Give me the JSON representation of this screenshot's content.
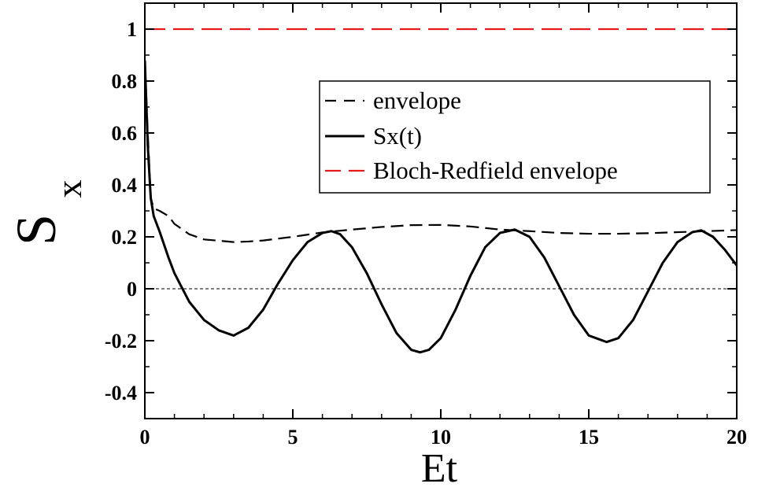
{
  "chart_data": {
    "type": "line",
    "xlabel": "Et",
    "ylabel": "S",
    "ylabel_subscript": "x",
    "xlim": [
      0,
      20
    ],
    "ylim": [
      -0.5,
      1.1
    ],
    "xticks": [
      0,
      5,
      10,
      15,
      20
    ],
    "xtick_labels": [
      "0",
      "5",
      "10",
      "15",
      "20"
    ],
    "yticks": [
      -0.4,
      -0.2,
      0,
      0.2,
      0.4,
      0.6,
      0.8,
      1
    ],
    "ytick_labels": [
      "-0.4",
      "-0.2",
      "0",
      "0.2",
      "0.4",
      "0.6",
      "0.8",
      "1"
    ],
    "grid": false,
    "legend_position": "upper-right",
    "zero_line": {
      "y": 0,
      "color": "#000000",
      "style": "dashed-thin"
    },
    "series": [
      {
        "name": "envelope",
        "color": "#000000",
        "style": "dashed",
        "x": [
          0,
          0.1,
          0.2,
          0.3,
          0.5,
          0.8,
          1.0,
          1.5,
          2.0,
          2.5,
          3.0,
          3.5,
          4.0,
          5.0,
          6.0,
          7.0,
          8.0,
          9.0,
          10.0,
          11.0,
          12.0,
          13.0,
          14.0,
          15.0,
          16.0,
          17.0,
          18.0,
          19.0,
          20.0
        ],
        "y": [
          0.88,
          0.6,
          0.35,
          0.31,
          0.3,
          0.28,
          0.25,
          0.21,
          0.19,
          0.185,
          0.18,
          0.182,
          0.186,
          0.2,
          0.217,
          0.228,
          0.238,
          0.245,
          0.246,
          0.24,
          0.228,
          0.222,
          0.215,
          0.212,
          0.212,
          0.214,
          0.218,
          0.222,
          0.226
        ]
      },
      {
        "name": "Sx(t)",
        "color": "#000000",
        "style": "solid",
        "x": [
          0,
          0.1,
          0.2,
          0.3,
          0.5,
          0.8,
          1.0,
          1.5,
          2.0,
          2.5,
          3.0,
          3.5,
          4.0,
          4.5,
          5.0,
          5.5,
          6.0,
          6.3,
          6.6,
          7.0,
          7.5,
          8.0,
          8.5,
          9.0,
          9.3,
          9.6,
          10.0,
          10.5,
          11.0,
          11.5,
          12.0,
          12.5,
          13.0,
          13.5,
          14.0,
          14.5,
          15.0,
          15.6,
          16.0,
          16.5,
          17.0,
          17.5,
          18.0,
          18.5,
          18.8,
          19.2,
          19.6,
          20.0
        ],
        "y": [
          0.88,
          0.55,
          0.35,
          0.28,
          0.22,
          0.12,
          0.06,
          -0.05,
          -0.12,
          -0.16,
          -0.18,
          -0.15,
          -0.08,
          0.02,
          0.11,
          0.18,
          0.215,
          0.222,
          0.21,
          0.16,
          0.06,
          -0.06,
          -0.17,
          -0.235,
          -0.245,
          -0.235,
          -0.19,
          -0.08,
          0.05,
          0.16,
          0.215,
          0.228,
          0.2,
          0.12,
          0.01,
          -0.1,
          -0.18,
          -0.205,
          -0.19,
          -0.12,
          -0.01,
          0.1,
          0.18,
          0.218,
          0.225,
          0.2,
          0.15,
          0.09
        ]
      },
      {
        "name": "Bloch-Redfield envelope",
        "color": "#e8191b",
        "style": "dashed",
        "x": [
          0,
          20
        ],
        "y": [
          1,
          1
        ]
      }
    ]
  }
}
